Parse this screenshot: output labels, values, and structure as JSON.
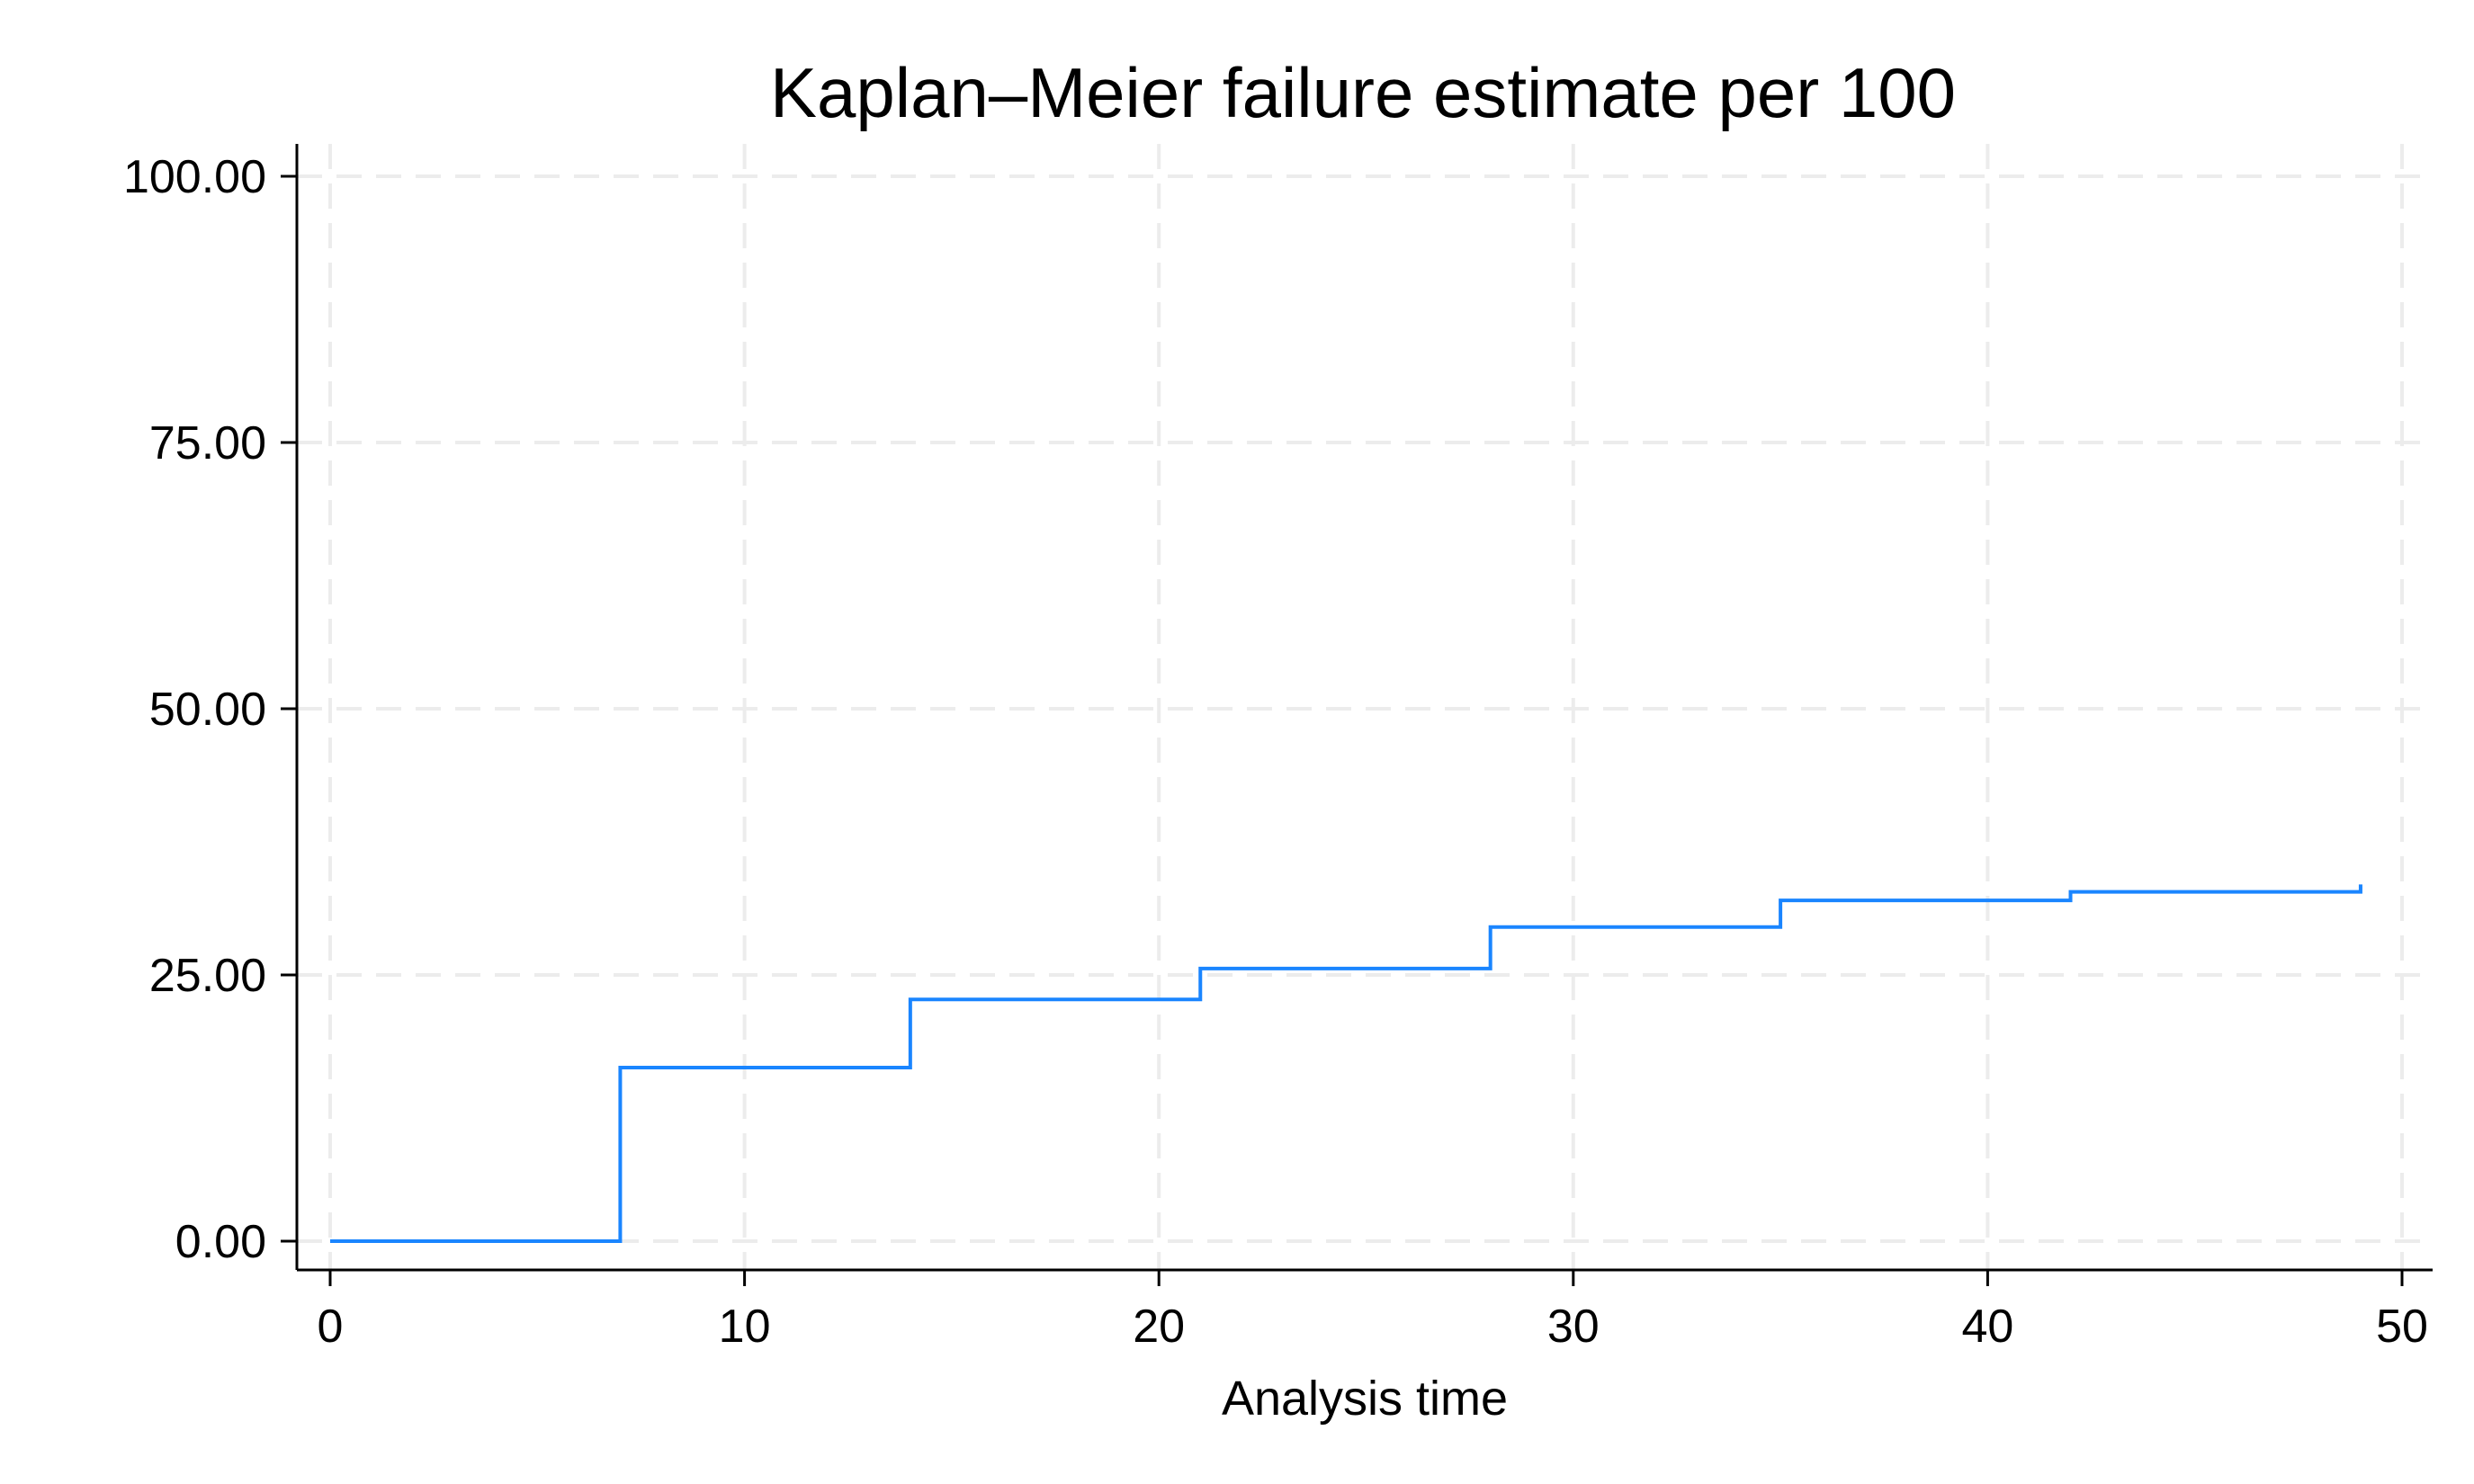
{
  "chart_data": {
    "type": "line",
    "step": true,
    "title": "Kaplan–Meier failure estimate per 100",
    "xlabel": "Analysis time",
    "ylabel": "",
    "xlim": [
      -0.8,
      50.8
    ],
    "ylim": [
      -3,
      103
    ],
    "x_ticks": [
      0,
      10,
      20,
      30,
      40,
      50
    ],
    "x_tick_labels": [
      "0",
      "10",
      "20",
      "30",
      "40",
      "50"
    ],
    "y_ticks": [
      0,
      25,
      50,
      75,
      100
    ],
    "y_tick_labels": [
      "0.00",
      "25.00",
      "50.00",
      "75.00",
      "100.00"
    ],
    "grid": true,
    "legend": "none",
    "line_color": "#1a85ff",
    "series": [
      {
        "x": [
          0,
          7,
          14,
          21,
          28,
          35,
          42,
          49
        ],
        "y": [
          0,
          16.3,
          22.7,
          25.6,
          29.5,
          32.0,
          32.8,
          33.5
        ]
      }
    ]
  }
}
